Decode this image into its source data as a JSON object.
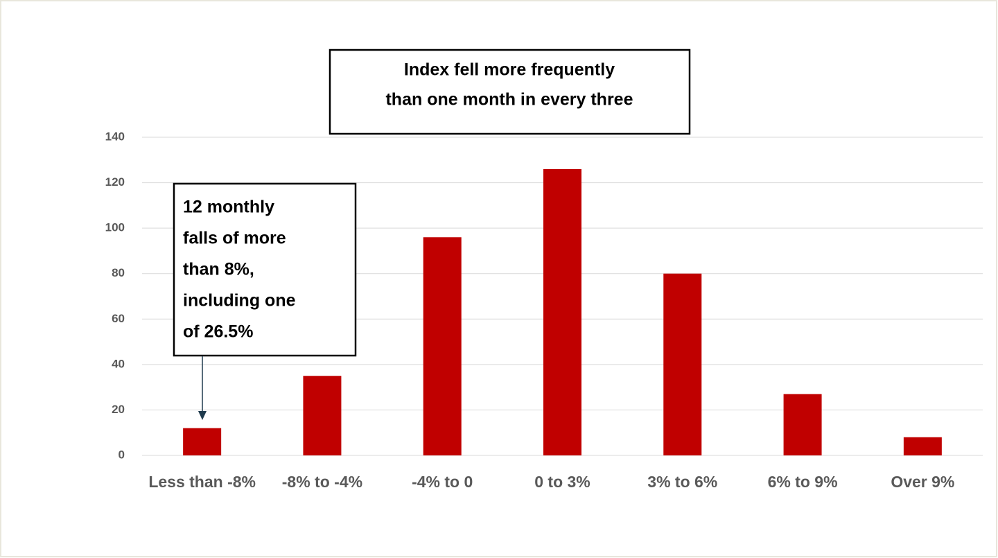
{
  "chart_data": {
    "type": "bar",
    "title": [
      "Index fell more frequently",
      "than one month in every three"
    ],
    "categories": [
      "Less than -8%",
      "-8% to -4%",
      "-4% to 0",
      "0 to 3%",
      "3% to 6%",
      "6% to 9%",
      "Over 9%"
    ],
    "values": [
      12,
      35,
      96,
      126,
      80,
      27,
      8
    ],
    "color": "#c00000",
    "ylim": [
      0,
      140
    ],
    "yticks": [
      0,
      20,
      40,
      60,
      80,
      100,
      120,
      140
    ],
    "grid": true,
    "annotation": [
      "12 monthly",
      "falls of more",
      "than 8%,",
      "including one",
      "of 26.5%"
    ]
  }
}
